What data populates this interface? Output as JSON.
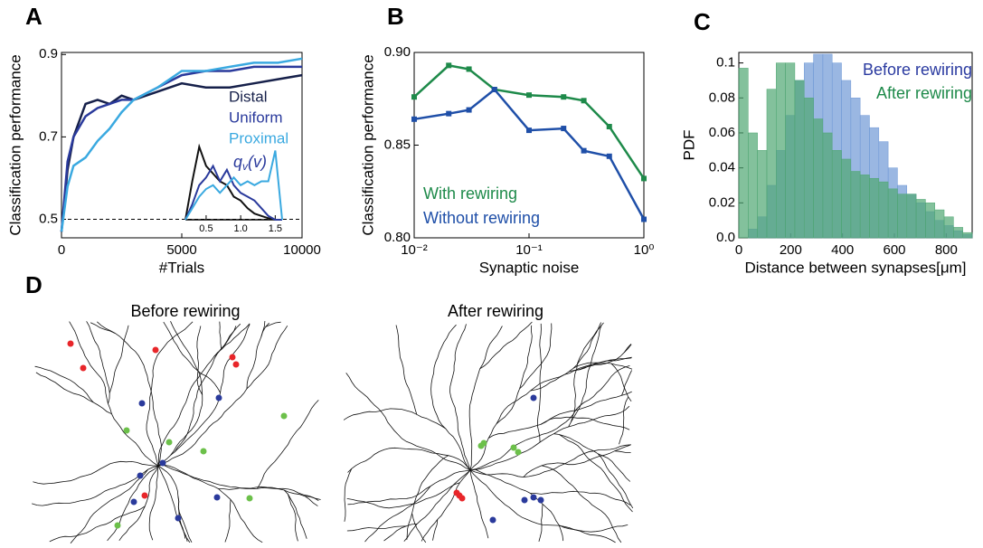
{
  "panel_labels": [
    "A",
    "B",
    "C",
    "D"
  ],
  "chart_data": [
    {
      "type": "line",
      "x_label": "#Trials",
      "y_label": "Classification performance",
      "x": [
        0,
        250,
        500,
        1000,
        1500,
        2000,
        2500,
        3000,
        4000,
        5000,
        6000,
        7000,
        8000,
        9000,
        10000
      ],
      "series": [
        {
          "name": "Distal",
          "color": "#16204a",
          "values": [
            0.47,
            0.62,
            0.7,
            0.78,
            0.79,
            0.78,
            0.8,
            0.79,
            0.81,
            0.83,
            0.82,
            0.82,
            0.83,
            0.84,
            0.85
          ]
        },
        {
          "name": "Uniform",
          "color": "#2a3a9c",
          "values": [
            0.47,
            0.64,
            0.7,
            0.75,
            0.77,
            0.78,
            0.79,
            0.79,
            0.82,
            0.85,
            0.86,
            0.86,
            0.87,
            0.87,
            0.87
          ]
        },
        {
          "name": "Proximal",
          "color": "#3aa9e0",
          "values": [
            0.47,
            0.58,
            0.63,
            0.65,
            0.69,
            0.72,
            0.76,
            0.79,
            0.82,
            0.86,
            0.86,
            0.87,
            0.88,
            0.88,
            0.89
          ]
        }
      ],
      "hline": 0.5,
      "xlim": [
        0,
        10000
      ],
      "xticks": [
        0,
        5000,
        10000
      ],
      "ylim": [
        0.455,
        0.905
      ],
      "yticks": [
        0.5,
        0.7,
        0.9
      ]
    },
    {
      "type": "line",
      "label_parts": [
        "q",
        "v",
        "(v)"
      ],
      "label_color": "#2a3a9c",
      "x": [
        0.2,
        0.3,
        0.4,
        0.5,
        0.6,
        0.7,
        0.8,
        0.9,
        1.0,
        1.1,
        1.2,
        1.3,
        1.4,
        1.5,
        1.6
      ],
      "series": [
        {
          "color": "#111111",
          "values": [
            0,
            0.5,
            0.95,
            0.7,
            0.6,
            0.5,
            0.45,
            0.3,
            0.25,
            0.15,
            0.08,
            0.05,
            0.02,
            0,
            0
          ]
        },
        {
          "color": "#2a3a9c",
          "values": [
            0,
            0.2,
            0.45,
            0.55,
            0.7,
            0.5,
            0.65,
            0.45,
            0.35,
            0.3,
            0.25,
            0.15,
            0.05,
            0,
            0
          ]
        },
        {
          "color": "#3aa9e0",
          "values": [
            0,
            0.15,
            0.3,
            0.4,
            0.45,
            0.35,
            0.45,
            0.55,
            0.45,
            0.5,
            0.45,
            0.5,
            0.5,
            0.9,
            0
          ]
        }
      ],
      "xlim": [
        0.2,
        1.6
      ],
      "xticks": [
        0.5,
        {
          "value": 1.0,
          "label": "1.0"
        },
        1.5
      ],
      "ylim": [
        0,
        1
      ]
    },
    {
      "type": "line",
      "x_label": "Synaptic noise",
      "y_label": "Classification performance",
      "log_x": true,
      "markers": "square",
      "x": [
        0.01,
        0.02,
        0.03,
        0.05,
        0.1,
        0.2,
        0.3,
        0.5,
        1
      ],
      "series": [
        {
          "name": "With rewiring",
          "color": "#1e8a4a",
          "values": [
            0.876,
            0.893,
            0.891,
            0.88,
            0.877,
            0.876,
            0.874,
            0.86,
            0.832
          ]
        },
        {
          "name": "Without rewiring",
          "color": "#1f4fa8",
          "values": [
            0.864,
            0.867,
            0.869,
            0.88,
            0.858,
            0.859,
            0.847,
            0.844,
            0.81
          ]
        }
      ],
      "xlim": [
        0.01,
        1
      ],
      "xticks": [
        {
          "value": 0.01,
          "label": "10⁻²"
        },
        {
          "value": 0.1,
          "label": "10⁻¹"
        },
        {
          "value": 1,
          "label": "10⁰"
        }
      ],
      "ylim": [
        0.8,
        0.9
      ],
      "yticks": [
        {
          "value": 0.8,
          "label": "0.80"
        },
        {
          "value": 0.85,
          "label": "0.85"
        },
        {
          "value": 0.9,
          "label": "0.90"
        }
      ]
    },
    {
      "type": "histogram",
      "x_label": "Distance between synapses[μm]",
      "y_label": "PDF",
      "bins": [
        0,
        36,
        72,
        108,
        144,
        180,
        216,
        252,
        288,
        324,
        360,
        396,
        432,
        468,
        504,
        540,
        576,
        612,
        648,
        684,
        720,
        756,
        792,
        828,
        864,
        900
      ],
      "series": [
        {
          "name": "Before rewiring",
          "color": "#6f98d6",
          "legend_color": "#2a3aa0",
          "values": [
            0.0,
            0.005,
            0.012,
            0.03,
            0.05,
            0.07,
            0.09,
            0.1,
            0.105,
            0.105,
            0.1,
            0.09,
            0.08,
            0.07,
            0.063,
            0.055,
            0.04,
            0.03,
            0.025,
            0.02,
            0.015,
            0.01,
            0.007,
            0.004,
            0.002
          ]
        },
        {
          "name": "After rewiring",
          "color": "#4fa672",
          "legend_color": "#1e8a4a",
          "values": [
            0.097,
            0.06,
            0.05,
            0.085,
            0.1,
            0.1,
            0.09,
            0.08,
            0.068,
            0.06,
            0.05,
            0.045,
            0.038,
            0.036,
            0.034,
            0.032,
            0.028,
            0.025,
            0.025,
            0.022,
            0.02,
            0.016,
            0.012,
            0.006,
            0.003
          ]
        }
      ],
      "xlim": [
        0,
        900
      ],
      "xticks": [
        0,
        200,
        400,
        600,
        800
      ],
      "ylim": [
        0,
        0.106
      ],
      "yticks": [
        {
          "value": 0,
          "label": "0.0"
        },
        0.02,
        0.04,
        0.06,
        0.08,
        0.1
      ]
    }
  ],
  "panel_d": {
    "titles": [
      "Before rewiring",
      "After rewiring"
    ]
  }
}
